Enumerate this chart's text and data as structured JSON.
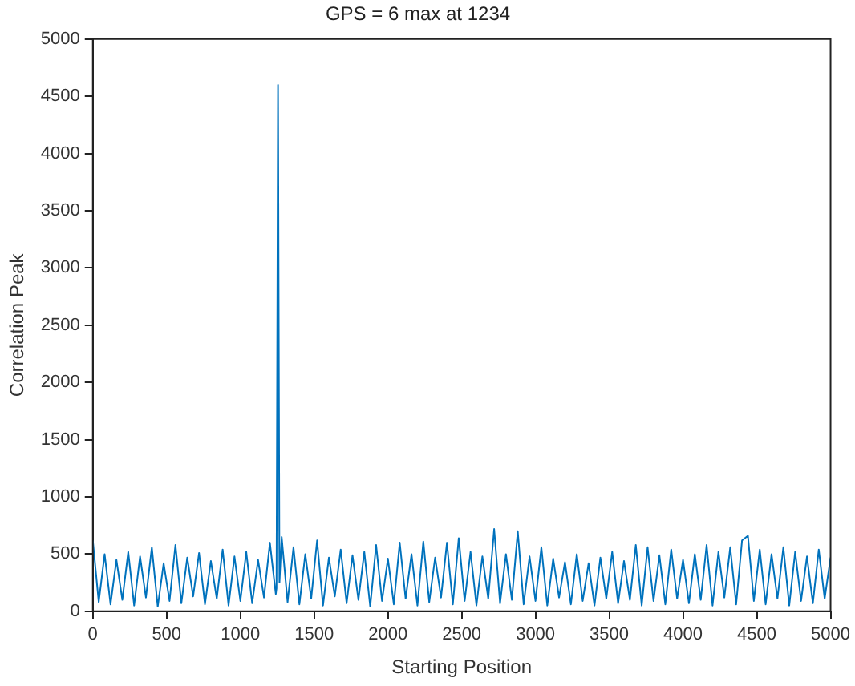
{
  "chart_data": {
    "type": "line",
    "title": "GPS = 6 max at 1234",
    "xlabel": "Starting Position",
    "ylabel": "Correlation Peak",
    "x": [
      0,
      40,
      80,
      120,
      160,
      200,
      240,
      280,
      320,
      360,
      400,
      440,
      480,
      520,
      560,
      600,
      640,
      680,
      720,
      760,
      800,
      840,
      880,
      920,
      960,
      1000,
      1040,
      1080,
      1120,
      1160,
      1200,
      1240,
      1245,
      1255,
      1265,
      1280,
      1320,
      1360,
      1400,
      1440,
      1480,
      1520,
      1560,
      1600,
      1640,
      1680,
      1720,
      1760,
      1800,
      1840,
      1880,
      1920,
      1960,
      2000,
      2040,
      2080,
      2120,
      2160,
      2200,
      2240,
      2280,
      2320,
      2360,
      2400,
      2440,
      2480,
      2520,
      2560,
      2600,
      2640,
      2680,
      2720,
      2760,
      2800,
      2840,
      2880,
      2920,
      2960,
      3000,
      3040,
      3080,
      3120,
      3160,
      3200,
      3240,
      3280,
      3320,
      3360,
      3400,
      3440,
      3480,
      3520,
      3560,
      3600,
      3640,
      3680,
      3720,
      3760,
      3800,
      3840,
      3880,
      3920,
      3960,
      4000,
      4040,
      4080,
      4120,
      4160,
      4200,
      4240,
      4280,
      4320,
      4360,
      4400,
      4440,
      4480,
      4520,
      4560,
      4600,
      4640,
      4680,
      4720,
      4760,
      4800,
      4840,
      4880,
      4920,
      4960,
      5000
    ],
    "series": [
      {
        "color": "#0072bd",
        "values": [
          620,
          80,
          500,
          60,
          450,
          100,
          520,
          50,
          480,
          120,
          560,
          40,
          420,
          90,
          580,
          70,
          470,
          130,
          510,
          60,
          440,
          110,
          540,
          50,
          480,
          90,
          520,
          70,
          450,
          120,
          600,
          150,
          200,
          4600,
          250,
          650,
          80,
          560,
          60,
          500,
          110,
          620,
          50,
          470,
          130,
          540,
          70,
          490,
          100,
          520,
          40,
          580,
          90,
          460,
          60,
          600,
          110,
          500,
          50,
          610,
          80,
          470,
          120,
          600,
          60,
          640,
          90,
          520,
          50,
          480,
          110,
          720,
          70,
          500,
          100,
          700,
          60,
          480,
          90,
          560,
          50,
          460,
          120,
          430,
          60,
          500,
          90,
          420,
          50,
          470,
          110,
          520,
          70,
          440,
          100,
          580,
          50,
          560,
          90,
          490,
          60,
          540,
          110,
          450,
          70,
          500,
          100,
          580,
          50,
          520,
          120,
          560,
          60,
          620,
          660,
          90,
          540,
          60,
          500,
          110,
          560,
          50,
          520,
          90,
          480,
          70,
          540,
          110,
          470
        ]
      }
    ],
    "xlim": [
      0,
      5000
    ],
    "xticks": [
      0,
      500,
      1000,
      1500,
      2000,
      2500,
      3000,
      3500,
      4000,
      4500,
      5000
    ],
    "ylim": [
      0,
      5000
    ],
    "yticks": [
      0,
      500,
      1000,
      1500,
      2000,
      2500,
      3000,
      3500,
      4000,
      4500,
      5000
    ],
    "grid": false,
    "legend": false,
    "marker": "none",
    "line_style": "solid"
  }
}
